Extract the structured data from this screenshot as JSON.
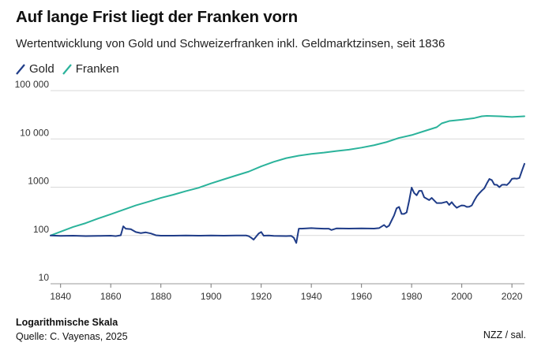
{
  "title": "Auf lange Frist liegt der Franken vorn",
  "subtitle": "Wertentwicklung von Gold und Schweizerfranken inkl. Geldmarktzinsen, seit 1836",
  "footer": {
    "note": "Logarithmische Skala",
    "source": "Quelle: C. Vayenas, 2025",
    "credit": "NZZ / sal."
  },
  "chart_data": {
    "type": "line",
    "title": "Auf lange Frist liegt der Franken vorn",
    "subtitle": "Wertentwicklung von Gold und Schweizerfranken inkl. Geldmarktzinsen, seit 1836",
    "xlabel": "",
    "ylabel": "",
    "y_scale": "log",
    "xlim": [
      1836,
      2025
    ],
    "ylim": [
      10,
      100000
    ],
    "x_ticks": [
      1840,
      1860,
      1880,
      1900,
      1920,
      1940,
      1960,
      1980,
      2000,
      2020
    ],
    "y_ticks": [
      10,
      100,
      1000,
      10000,
      100000
    ],
    "y_tick_labels": [
      "10",
      "100",
      "1000",
      "10 000",
      "100 000"
    ],
    "grid": "horizontal",
    "legend_position": "top-left",
    "series": [
      {
        "name": "Gold",
        "color": "#1f3c88",
        "points": [
          [
            1836,
            100
          ],
          [
            1840,
            98
          ],
          [
            1845,
            99
          ],
          [
            1850,
            97
          ],
          [
            1855,
            98
          ],
          [
            1860,
            99
          ],
          [
            1862,
            97
          ],
          [
            1864,
            101
          ],
          [
            1865,
            155
          ],
          [
            1866,
            138
          ],
          [
            1868,
            135
          ],
          [
            1870,
            118
          ],
          [
            1872,
            112
          ],
          [
            1874,
            116
          ],
          [
            1876,
            110
          ],
          [
            1878,
            101
          ],
          [
            1880,
            99
          ],
          [
            1885,
            99
          ],
          [
            1890,
            100
          ],
          [
            1895,
            99
          ],
          [
            1900,
            100
          ],
          [
            1905,
            99
          ],
          [
            1910,
            100
          ],
          [
            1914,
            100
          ],
          [
            1915,
            97
          ],
          [
            1916,
            90
          ],
          [
            1917,
            82
          ],
          [
            1919,
            110
          ],
          [
            1920,
            118
          ],
          [
            1921,
            99
          ],
          [
            1923,
            100
          ],
          [
            1925,
            98
          ],
          [
            1930,
            97
          ],
          [
            1932,
            98
          ],
          [
            1933,
            90
          ],
          [
            1934,
            70
          ],
          [
            1935,
            138
          ],
          [
            1938,
            140
          ],
          [
            1940,
            142
          ],
          [
            1942,
            140
          ],
          [
            1945,
            138
          ],
          [
            1947,
            138
          ],
          [
            1948,
            130
          ],
          [
            1950,
            140
          ],
          [
            1955,
            139
          ],
          [
            1960,
            140
          ],
          [
            1965,
            139
          ],
          [
            1967,
            142
          ],
          [
            1969,
            165
          ],
          [
            1970,
            148
          ],
          [
            1971,
            160
          ],
          [
            1973,
            260
          ],
          [
            1974,
            365
          ],
          [
            1975,
            390
          ],
          [
            1976,
            280
          ],
          [
            1977,
            280
          ],
          [
            1978,
            300
          ],
          [
            1979,
            520
          ],
          [
            1980,
            980
          ],
          [
            1981,
            760
          ],
          [
            1982,
            680
          ],
          [
            1983,
            840
          ],
          [
            1984,
            840
          ],
          [
            1985,
            620
          ],
          [
            1987,
            540
          ],
          [
            1988,
            600
          ],
          [
            1990,
            470
          ],
          [
            1992,
            470
          ],
          [
            1994,
            500
          ],
          [
            1995,
            430
          ],
          [
            1996,
            490
          ],
          [
            1997,
            420
          ],
          [
            1998,
            375
          ],
          [
            1999,
            400
          ],
          [
            2000,
            420
          ],
          [
            2001,
            415
          ],
          [
            2002,
            390
          ],
          [
            2003,
            395
          ],
          [
            2004,
            420
          ],
          [
            2005,
            530
          ],
          [
            2006,
            650
          ],
          [
            2007,
            750
          ],
          [
            2008,
            850
          ],
          [
            2009,
            950
          ],
          [
            2010,
            1200
          ],
          [
            2011,
            1480
          ],
          [
            2012,
            1400
          ],
          [
            2013,
            1130
          ],
          [
            2014,
            1120
          ],
          [
            2015,
            1000
          ],
          [
            2016,
            1120
          ],
          [
            2017,
            1130
          ],
          [
            2018,
            1110
          ],
          [
            2019,
            1250
          ],
          [
            2020,
            1490
          ],
          [
            2021,
            1520
          ],
          [
            2022,
            1500
          ],
          [
            2023,
            1550
          ],
          [
            2024,
            2200
          ],
          [
            2025,
            3050
          ]
        ]
      },
      {
        "name": "Franken",
        "color": "#2bb39b",
        "points": [
          [
            1836,
            100
          ],
          [
            1840,
            120
          ],
          [
            1845,
            150
          ],
          [
            1850,
            180
          ],
          [
            1855,
            225
          ],
          [
            1860,
            275
          ],
          [
            1865,
            340
          ],
          [
            1870,
            420
          ],
          [
            1875,
            500
          ],
          [
            1880,
            600
          ],
          [
            1885,
            700
          ],
          [
            1890,
            830
          ],
          [
            1895,
            970
          ],
          [
            1900,
            1200
          ],
          [
            1905,
            1450
          ],
          [
            1910,
            1750
          ],
          [
            1915,
            2100
          ],
          [
            1920,
            2700
          ],
          [
            1925,
            3350
          ],
          [
            1930,
            4000
          ],
          [
            1935,
            4500
          ],
          [
            1940,
            4900
          ],
          [
            1945,
            5200
          ],
          [
            1950,
            5600
          ],
          [
            1955,
            6000
          ],
          [
            1960,
            6600
          ],
          [
            1965,
            7400
          ],
          [
            1970,
            8600
          ],
          [
            1975,
            10500
          ],
          [
            1980,
            12000
          ],
          [
            1985,
            14500
          ],
          [
            1990,
            17500
          ],
          [
            1992,
            21000
          ],
          [
            1995,
            23500
          ],
          [
            2000,
            25000
          ],
          [
            2005,
            27000
          ],
          [
            2008,
            29500
          ],
          [
            2010,
            30000
          ],
          [
            2015,
            29500
          ],
          [
            2020,
            28500
          ],
          [
            2025,
            29500
          ]
        ]
      }
    ]
  }
}
